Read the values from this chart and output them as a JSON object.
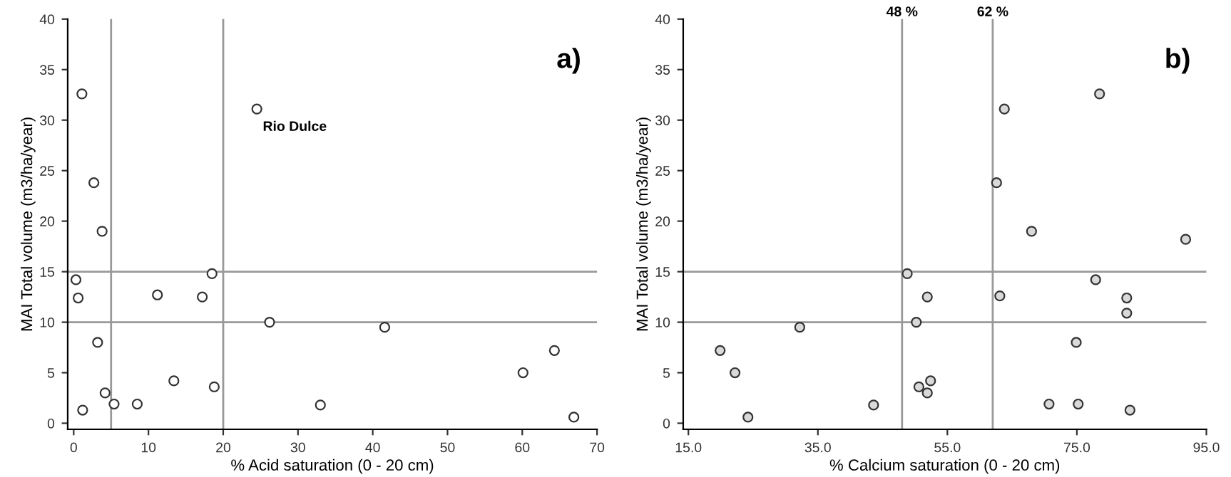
{
  "chart_data": [
    {
      "type": "scatter",
      "title": "a)",
      "xlabel": "% Acid saturation (0 - 20 cm)",
      "ylabel": "MAI Total volume (m3/ha/year)",
      "x": [
        1.1,
        24.5,
        2.7,
        3.8,
        0.3,
        18.5,
        0.6,
        11.2,
        17.2,
        26.2,
        41.6,
        3.2,
        64.3,
        60.1,
        13.4,
        18.8,
        4.2,
        5.4,
        8.5,
        33.0,
        1.2,
        66.9
      ],
      "series": [
        {
          "color": "#ffffff",
          "values": [
            32.6,
            31.1,
            23.8,
            19.0,
            14.2,
            14.8,
            12.4,
            12.7,
            12.5,
            10.0,
            9.5,
            8.0,
            7.2,
            5.0,
            4.2,
            3.6,
            3.0,
            1.9,
            1.9,
            1.8,
            1.3,
            0.6
          ]
        }
      ],
      "annotations": [
        {
          "text": "Rio Dulce",
          "x": 24.5,
          "y": 31.1
        }
      ],
      "xlim": [
        -0.8,
        70
      ],
      "xticks": [
        0,
        10,
        20,
        30,
        40,
        50,
        60,
        70
      ],
      "ylim": [
        -0.6,
        40
      ],
      "yticks": [
        0,
        5,
        10,
        15,
        20,
        25,
        30,
        35,
        40
      ],
      "ref_lines": [
        {
          "axis": "x",
          "value": 5,
          "color": "#999999"
        },
        {
          "axis": "x",
          "value": 20,
          "color": "#999999"
        },
        {
          "axis": "y",
          "value": 10,
          "color": "#999999"
        },
        {
          "axis": "y",
          "value": 15,
          "color": "#999999"
        }
      ],
      "marker": "circle",
      "grid": false,
      "legend": false
    },
    {
      "type": "scatter",
      "title": "b)",
      "xlabel": "% Calcium saturation (0 - 20 cm)",
      "ylabel": "MAI Total volume (m3/ha/year)",
      "x": [
        19.9,
        22.2,
        24.2,
        32.2,
        43.6,
        48.8,
        50.2,
        50.6,
        51.9,
        51.9,
        52.4,
        62.6,
        63.1,
        63.8,
        68.0,
        70.7,
        74.9,
        75.2,
        77.9,
        78.5,
        82.7,
        82.7,
        83.2,
        91.8
      ],
      "series": [
        {
          "color": "#d9d9d9",
          "values": [
            7.2,
            5.0,
            0.6,
            9.5,
            1.8,
            14.8,
            10.0,
            3.6,
            12.5,
            3.0,
            4.2,
            23.8,
            12.6,
            31.1,
            19.0,
            1.9,
            8.0,
            1.9,
            14.2,
            32.6,
            12.4,
            10.9,
            1.3,
            18.2
          ]
        }
      ],
      "xlim": [
        14.2,
        95
      ],
      "xticks": [
        {
          "value": 15,
          "label": "15.0"
        },
        {
          "value": 35,
          "label": "35.0"
        },
        {
          "value": 55,
          "label": "55.0"
        },
        {
          "value": 75,
          "label": "75.0"
        },
        {
          "value": 95,
          "label": "95.0"
        }
      ],
      "ylim": [
        -0.6,
        40
      ],
      "yticks": [
        0,
        5,
        10,
        15,
        20,
        25,
        30,
        35,
        40
      ],
      "ref_lines": [
        {
          "axis": "x",
          "value": 48,
          "label": "48 %",
          "color": "#999999"
        },
        {
          "axis": "x",
          "value": 62,
          "label": "62 %",
          "color": "#999999"
        },
        {
          "axis": "y",
          "value": 10,
          "color": "#999999"
        },
        {
          "axis": "y",
          "value": 15,
          "color": "#999999"
        }
      ],
      "marker": "circle",
      "grid": false,
      "legend": false
    }
  ]
}
